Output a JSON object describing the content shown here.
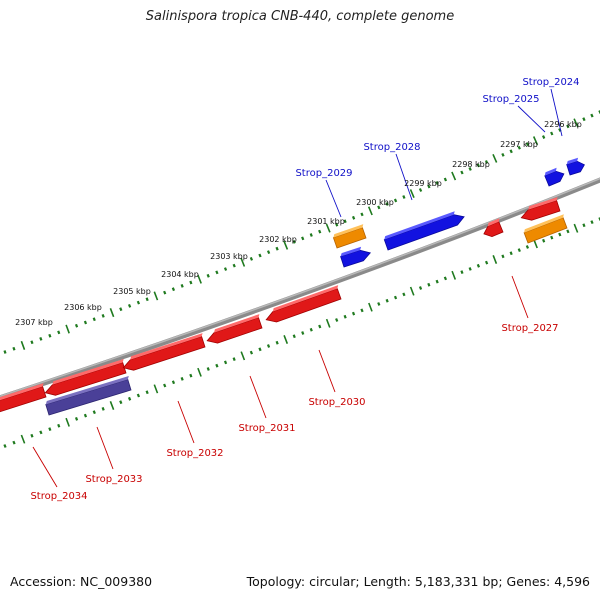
{
  "title": "Salinispora tropica CNB-440, complete genome",
  "footer": {
    "accession": "Accession: NC_009380",
    "topology": "Topology: circular; Length: 5,183,331 bp; Genes: 4,596"
  },
  "colors": {
    "backbone": "#8a8a8a",
    "tick_minor": "#1f7a1f",
    "tick_major": "#1f7a1f",
    "forward_gene": "#1010e0",
    "forward_label": "#1010c8",
    "reverse_gene": "#e01010",
    "reverse_label": "#c80000",
    "rna_gene": "#ee8a00",
    "reverse_other": "#4a4098"
  },
  "scale_labels": [
    "2296 kbp",
    "2297 kbp",
    "2298 kbp",
    "2299 kbp",
    "2300 kbp",
    "2301 kbp",
    "2302 kbp",
    "2303 kbp",
    "2304 kbp",
    "2305 kbp",
    "2306 kbp",
    "2307 kbp"
  ],
  "forward_labels": [
    "Strop_2024",
    "Strop_2025",
    "Strop_2028",
    "Strop_2029"
  ],
  "reverse_labels": [
    "Strop_2027",
    "Strop_2030",
    "Strop_2031",
    "Strop_2032",
    "Strop_2033",
    "Strop_2034"
  ]
}
